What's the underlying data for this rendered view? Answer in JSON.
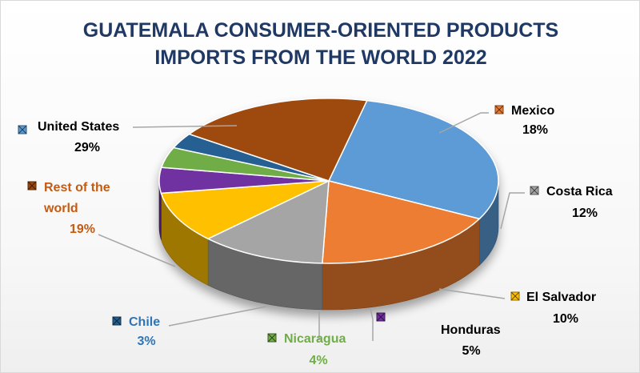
{
  "chart_data": {
    "type": "pie",
    "style": "3d-exploded-none",
    "title_lines": [
      "GUATEMALA CONSUMER-ORIENTED PRODUCTS",
      "IMPORTS FROM THE WORLD 2022"
    ],
    "legend": "none",
    "slices": [
      {
        "name": "United States",
        "value": 29,
        "pct_label": "29%",
        "color": "#5b9bd5",
        "label_color": "#000000"
      },
      {
        "name": "Mexico",
        "value": 18,
        "pct_label": "18%",
        "color": "#ed7d31",
        "label_color": "#000000"
      },
      {
        "name": "Costa Rica",
        "value": 12,
        "pct_label": "12%",
        "color": "#a5a5a5",
        "label_color": "#000000"
      },
      {
        "name": "El Salvador",
        "value": 10,
        "pct_label": "10%",
        "color": "#ffc000",
        "label_color": "#000000"
      },
      {
        "name": "Honduras",
        "value": 5,
        "pct_label": "5%",
        "color": "#7030a0",
        "label_color": "#000000"
      },
      {
        "name": "Nicaragua",
        "value": 4,
        "pct_label": "4%",
        "color": "#70ad47",
        "label_color": "#70ad47"
      },
      {
        "name": "Chile",
        "value": 3,
        "pct_label": "3%",
        "color": "#255e91",
        "label_color": "#2e75b6"
      },
      {
        "name": "Rest of the world",
        "name_lines": [
          "Rest of the",
          "world"
        ],
        "value": 19,
        "pct_label": "19%",
        "color": "#9e480e",
        "label_color": "#c55a11"
      }
    ]
  }
}
